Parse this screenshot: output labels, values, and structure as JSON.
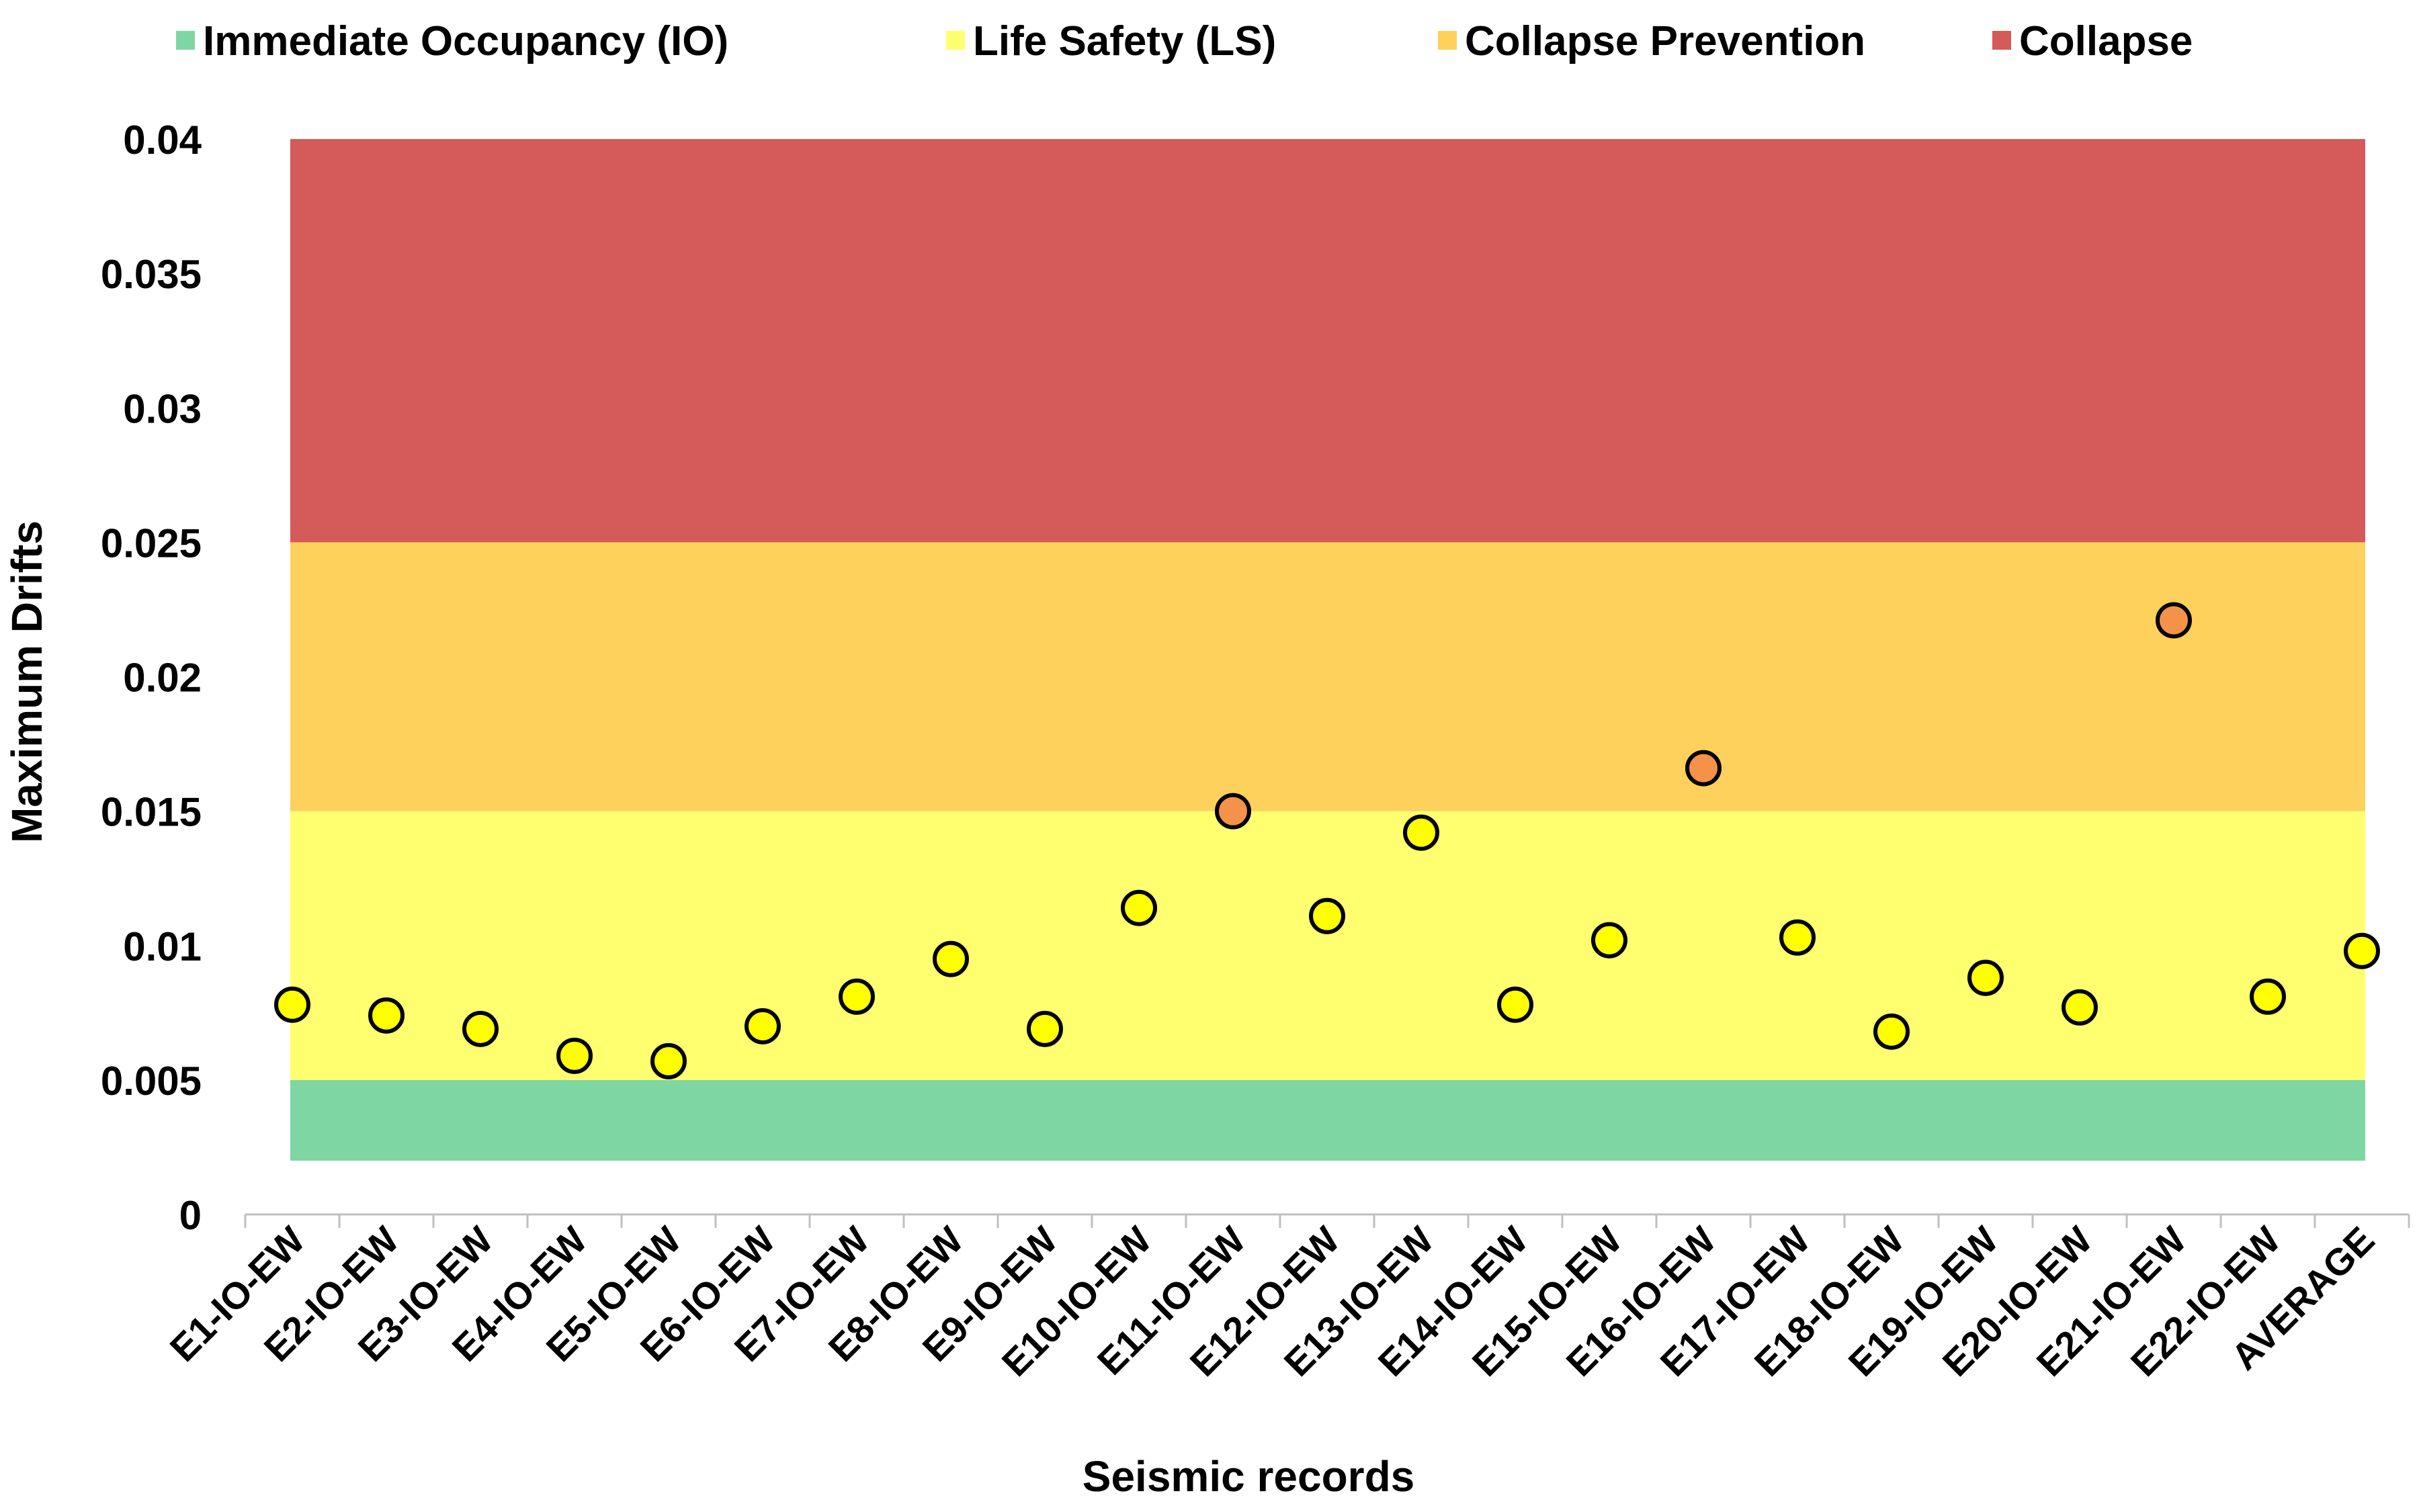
{
  "chart_data": {
    "type": "scatter",
    "title": "",
    "xlabel": "Seismic records",
    "ylabel": "Maximum Drifts",
    "ylim": [
      0,
      0.04
    ],
    "yticks": [
      "0",
      "0.005",
      "0.01",
      "0.015",
      "0.02",
      "0.025",
      "0.03",
      "0.035",
      "0.04"
    ],
    "categories": [
      "E1-IO-EW",
      "E2-IO-EW",
      "E3-IO-EW",
      "E4-IO-EW",
      "E5-IO-EW",
      "E6-IO-EW",
      "E7-IO-EW",
      "E8-IO-EW",
      "E9-IO-EW",
      "E10-IO-EW",
      "E11-IO-EW",
      "E12-IO-EW",
      "E13-IO-EW",
      "E14-IO-EW",
      "E15-IO-EW",
      "E16-IO-EW",
      "E17-IO-EW",
      "E18-IO-EW",
      "E19-IO-EW",
      "E20-IO-EW",
      "E21-IO-EW",
      "E22-IO-EW",
      "AVERAGE"
    ],
    "values": [
      0.0078,
      0.0074,
      0.0069,
      0.0059,
      0.0057,
      0.007,
      0.0081,
      0.0095,
      0.0069,
      0.0114,
      0.015,
      0.0111,
      0.0142,
      0.0078,
      0.0102,
      0.0166,
      0.0103,
      0.0068,
      0.0088,
      0.0077,
      0.0221,
      0.0081,
      0.0098
    ],
    "point_colors": [
      "#FFFF00",
      "#FFFF00",
      "#FFFF00",
      "#FFFF00",
      "#FFFF00",
      "#FFFF00",
      "#FFFF00",
      "#FFFF00",
      "#FFFF00",
      "#FFFF00",
      "#F4924A",
      "#FFFF00",
      "#FFFF00",
      "#FFFF00",
      "#FFFF00",
      "#F4924A",
      "#FFFF00",
      "#FFFF00",
      "#FFFF00",
      "#FFFF00",
      "#F4924A",
      "#FFFF00",
      "#FFFF00"
    ],
    "bands": [
      {
        "name": "Immediate Occupancy (IO)",
        "from": 0.002,
        "to": 0.005,
        "color": "#7ED6A3"
      },
      {
        "name": "Life Safety (LS)",
        "from": 0.005,
        "to": 0.015,
        "color": "#FFFF70"
      },
      {
        "name": "Collapse Prevention",
        "from": 0.015,
        "to": 0.025,
        "color": "#FDD15C"
      },
      {
        "name": "Collapse",
        "from": 0.025,
        "to": 0.04,
        "color": "#D55A5A"
      }
    ],
    "legend_position": "top",
    "grid": false
  }
}
